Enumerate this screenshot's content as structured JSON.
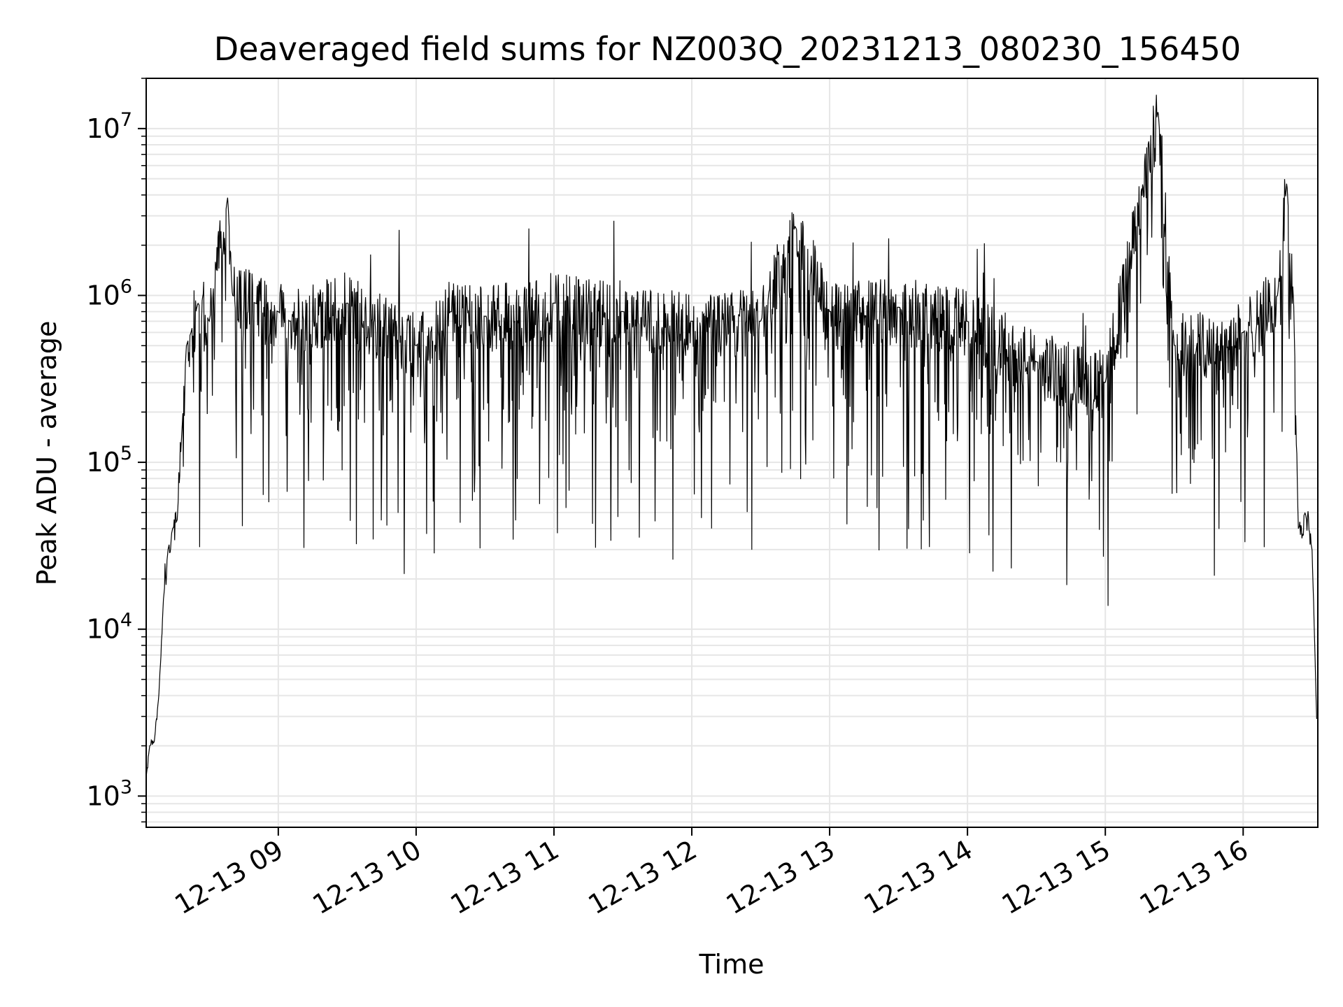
{
  "chart_data": {
    "type": "line",
    "title": "Deaveraged field sums for NZ003Q_20231213_080230_156450",
    "xlabel": "Time",
    "ylabel": "Peak ADU - average",
    "yscale": "log",
    "ylim": [
      650,
      20000000
    ],
    "xlim": [
      "2023-12-13T08:02:30",
      "2023-12-13T16:32:30"
    ],
    "grid": true,
    "line_color": "#000000",
    "grid_color": "#e6e6e6",
    "x_ticks": [
      {
        "value": "2023-12-13T09:00:00",
        "label": "12-13 09"
      },
      {
        "value": "2023-12-13T10:00:00",
        "label": "12-13 10"
      },
      {
        "value": "2023-12-13T11:00:00",
        "label": "12-13 11"
      },
      {
        "value": "2023-12-13T12:00:00",
        "label": "12-13 12"
      },
      {
        "value": "2023-12-13T13:00:00",
        "label": "12-13 13"
      },
      {
        "value": "2023-12-13T14:00:00",
        "label": "12-13 14"
      },
      {
        "value": "2023-12-13T15:00:00",
        "label": "12-13 15"
      },
      {
        "value": "2023-12-13T16:00:00",
        "label": "12-13 16"
      }
    ],
    "y_ticks": [
      {
        "value": 1000,
        "base": "10",
        "exp": "3"
      },
      {
        "value": 10000,
        "base": "10",
        "exp": "4"
      },
      {
        "value": 100000,
        "base": "10",
        "exp": "5"
      },
      {
        "value": 1000000,
        "base": "10",
        "exp": "6"
      },
      {
        "value": 10000000,
        "base": "10",
        "exp": "7"
      }
    ],
    "series": [
      {
        "x": [
          "2023-12-13T08:02:30",
          "2023-12-13T08:04:00",
          "2023-12-13T08:06:00",
          "2023-12-13T08:08:00",
          "2023-12-13T08:10:00",
          "2023-12-13T08:12:00",
          "2023-12-13T08:14:00",
          "2023-12-13T08:16:00",
          "2023-12-13T08:18:00",
          "2023-12-13T08:20:00",
          "2023-12-13T08:22:00",
          "2023-12-13T08:25:00",
          "2023-12-13T08:30:00",
          "2023-12-13T08:38:00",
          "2023-12-13T08:40:00",
          "2023-12-13T08:50:00",
          "2023-12-13T09:00:00",
          "2023-12-13T09:05:00",
          "2023-12-13T09:30:00",
          "2023-12-13T10:00:00",
          "2023-12-13T10:15:00",
          "2023-12-13T10:30:00",
          "2023-12-13T11:00:00",
          "2023-12-13T11:30:00",
          "2023-12-13T12:00:00",
          "2023-12-13T12:30:00",
          "2023-12-13T12:45:00",
          "2023-12-13T13:00:00",
          "2023-12-13T13:30:00",
          "2023-12-13T14:00:00",
          "2023-12-13T14:30:00",
          "2023-12-13T15:00:00",
          "2023-12-13T15:23:00",
          "2023-12-13T15:30:00",
          "2023-12-13T16:00:00",
          "2023-12-13T16:15:00",
          "2023-12-13T16:19:00",
          "2023-12-13T16:22:00",
          "2023-12-13T16:24:00",
          "2023-12-13T16:27:00",
          "2023-12-13T16:30:00",
          "2023-12-13T16:32:00"
        ],
        "y": [
          1300,
          2000,
          2100,
          4000,
          15000,
          30000,
          40000,
          45000,
          150000,
          500000,
          600000,
          900000,
          700000,
          3900000,
          1000000,
          900000,
          800000,
          700000,
          900000,
          500000,
          800000,
          750000,
          900000,
          800000,
          700000,
          700000,
          2600000,
          800000,
          850000,
          700000,
          400000,
          300000,
          12800000,
          500000,
          600000,
          1000000,
          4800000,
          900000,
          40000,
          50000,
          30000,
          2900
        ]
      }
    ]
  }
}
